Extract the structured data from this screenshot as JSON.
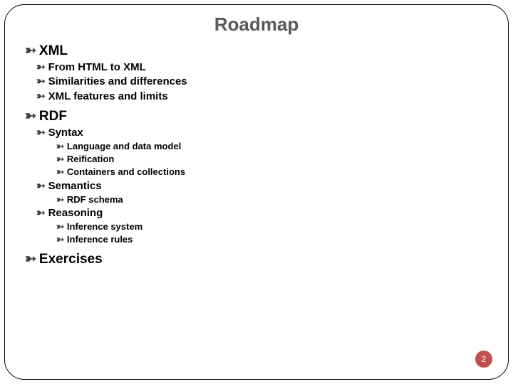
{
  "title": "Roadmap",
  "bullet_glyph": "☠",
  "bullet_text": "d",
  "page_number": "2",
  "colors": {
    "title": "#595959",
    "text": "#000000",
    "bullet": "#404040",
    "badge_bg": "#c0504d",
    "badge_fg": "#ffffff",
    "frame": "#000000",
    "background": "#ffffff"
  },
  "outline": {
    "xml": {
      "label": "XML",
      "items": [
        "From HTML to XML",
        "Similarities and differences",
        "XML features and limits"
      ]
    },
    "rdf": {
      "label": "RDF",
      "syntax": {
        "label": "Syntax",
        "items": [
          "Language and data model",
          "Reification",
          "Containers and collections"
        ]
      },
      "semantics": {
        "label": "Semantics",
        "items": [
          "RDF schema"
        ]
      },
      "reasoning": {
        "label": "Reasoning",
        "items": [
          "Inference system",
          "Inference rules"
        ]
      }
    },
    "exercises": {
      "label": "Exercises"
    }
  }
}
